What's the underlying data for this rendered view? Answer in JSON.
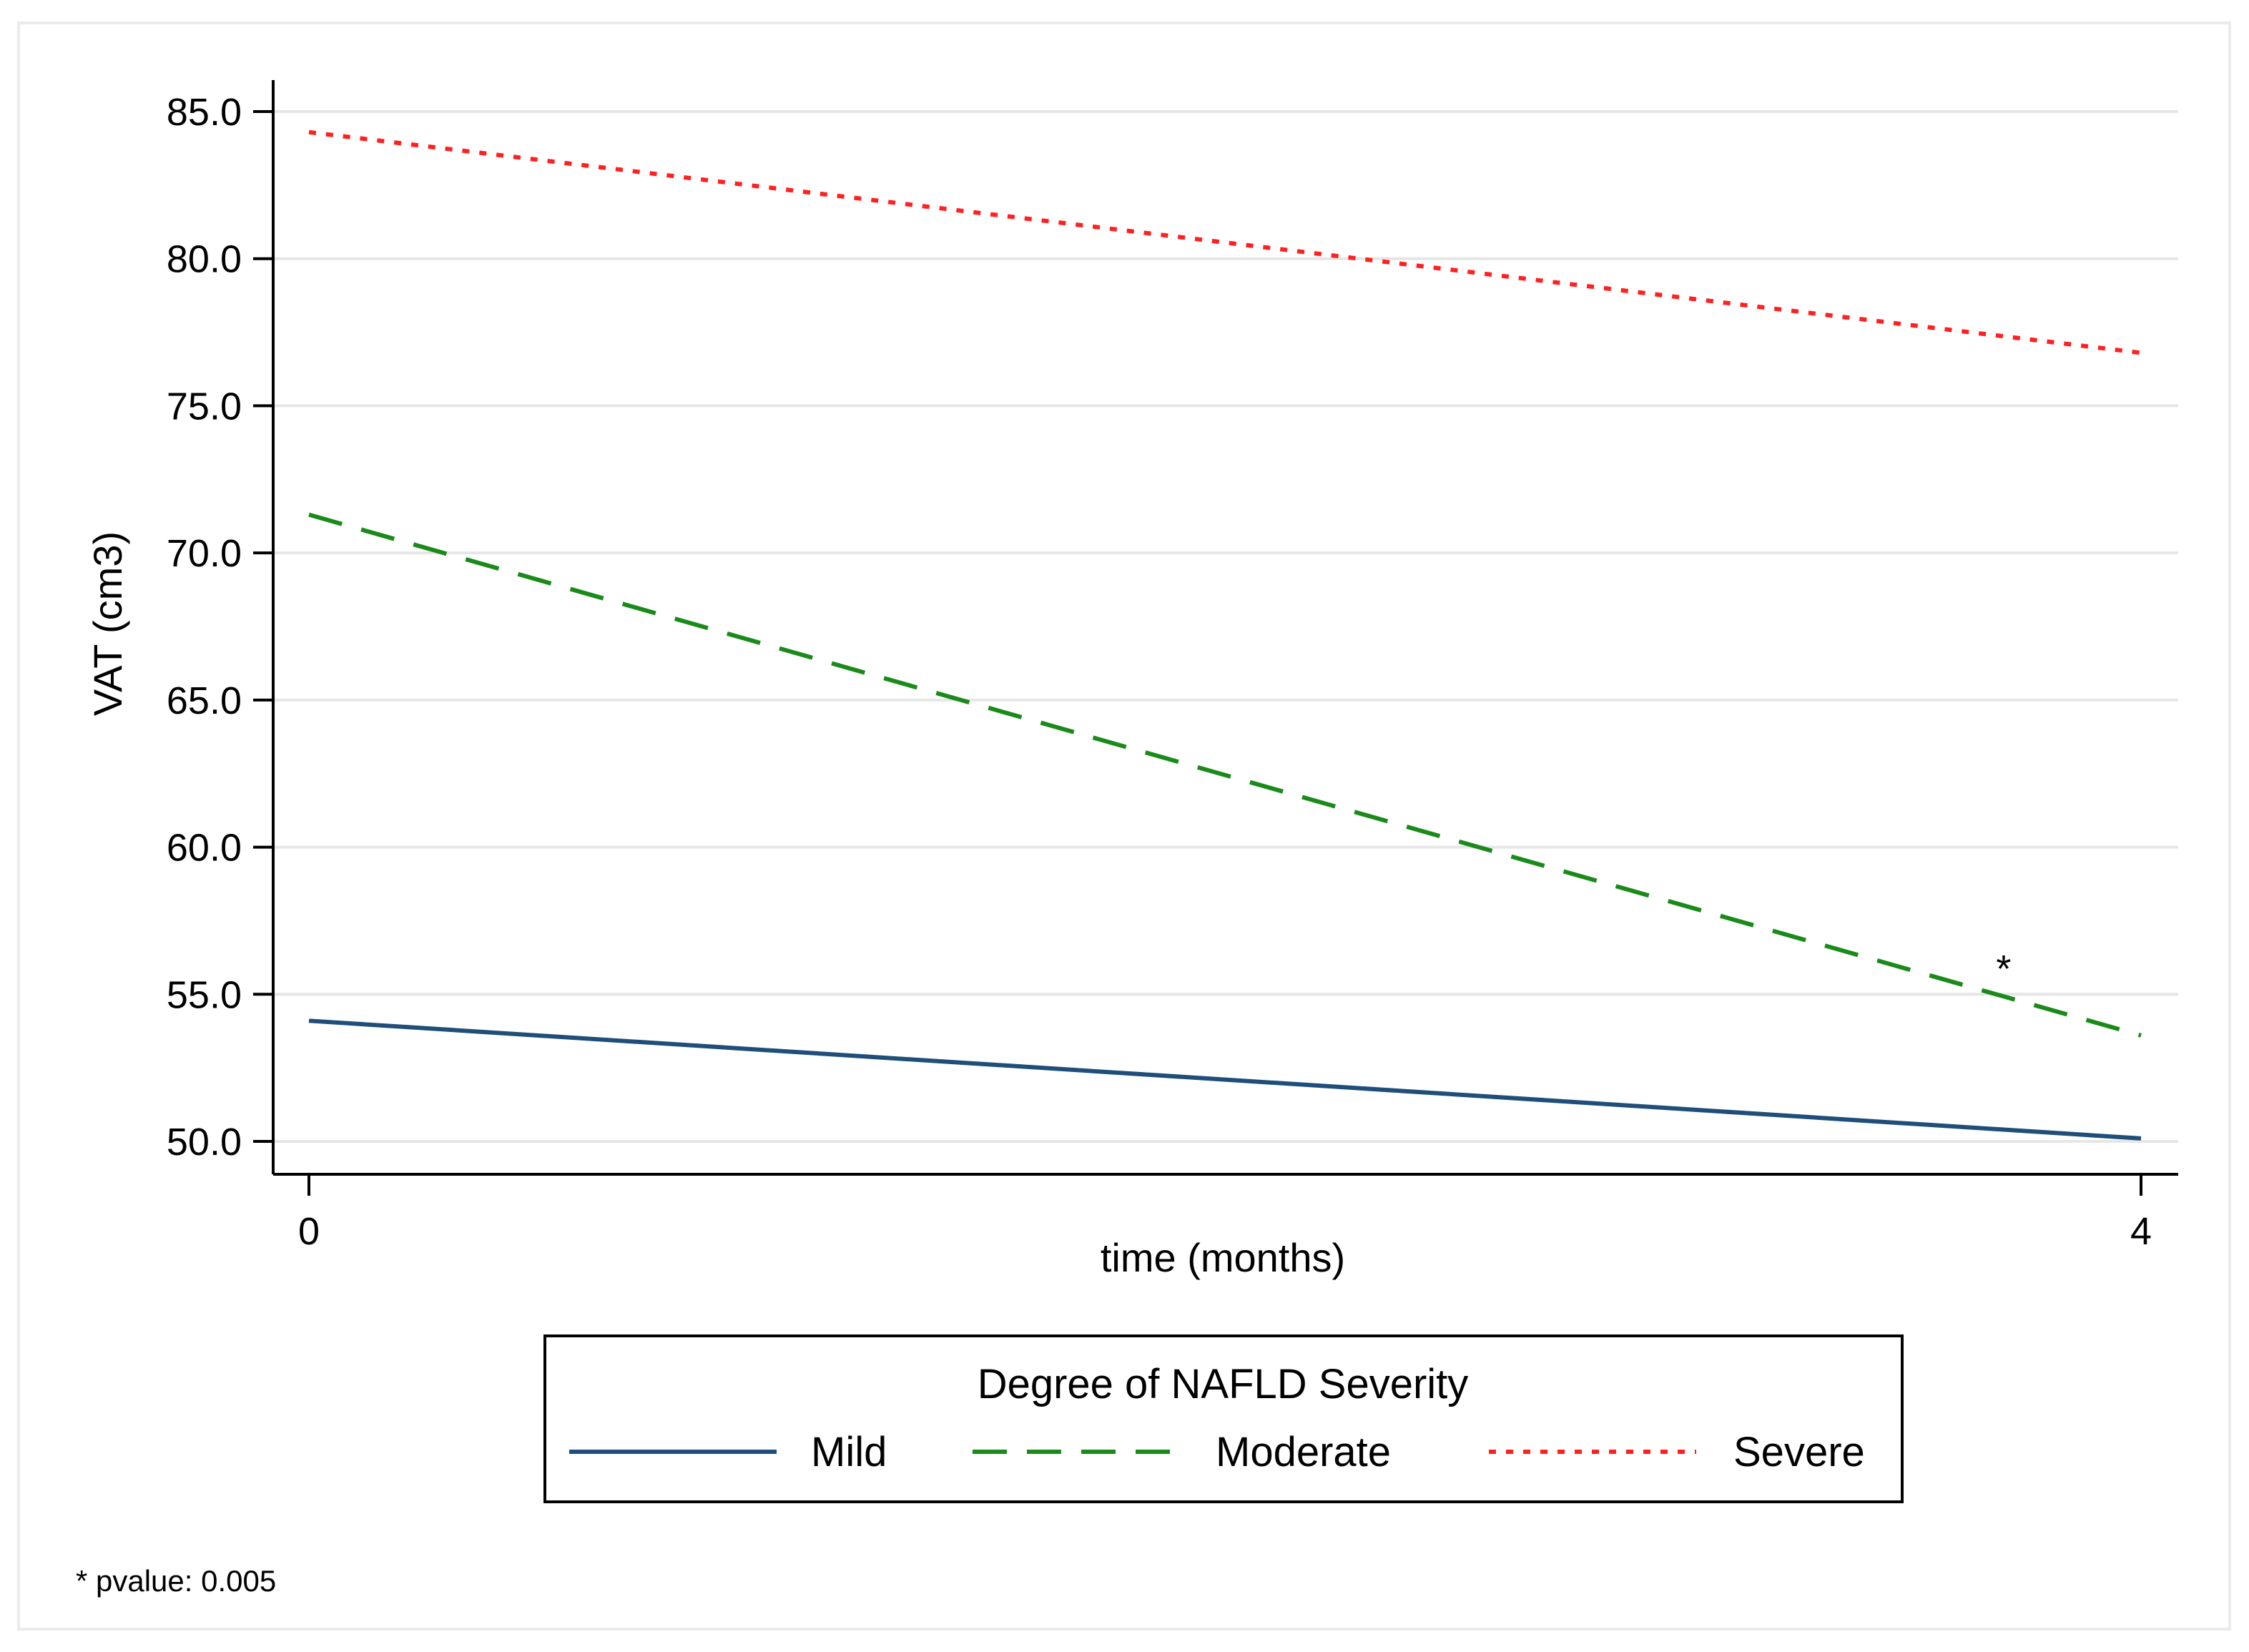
{
  "chart_data": {
    "type": "line",
    "x": [
      0,
      4
    ],
    "xlabel": "time (months)",
    "ylabel": "VAT (cm3)",
    "xlim": [
      0,
      4
    ],
    "ylim": [
      50,
      85
    ],
    "x_ticks": [
      "0",
      "4"
    ],
    "y_ticks": [
      "50.0",
      "55.0",
      "60.0",
      "65.0",
      "70.0",
      "75.0",
      "80.0",
      "85.0"
    ],
    "grid": true,
    "series": [
      {
        "name": "Mild",
        "values": [
          54.1,
          50.1
        ],
        "color": "#1f4e79",
        "style": "solid"
      },
      {
        "name": "Moderate",
        "values": [
          71.3,
          53.6
        ],
        "color": "#1a8a1a",
        "style": "dashed"
      },
      {
        "name": "Severe",
        "values": [
          84.3,
          76.8
        ],
        "color": "#ff2020",
        "style": "dotted"
      }
    ],
    "legend": {
      "title": "Degree of NAFLD Severity",
      "position": "bottom"
    },
    "annotations": [
      {
        "text": "*",
        "x": 3.7,
        "y": 56.1
      }
    ],
    "footnote": "* pvalue: 0.005"
  }
}
